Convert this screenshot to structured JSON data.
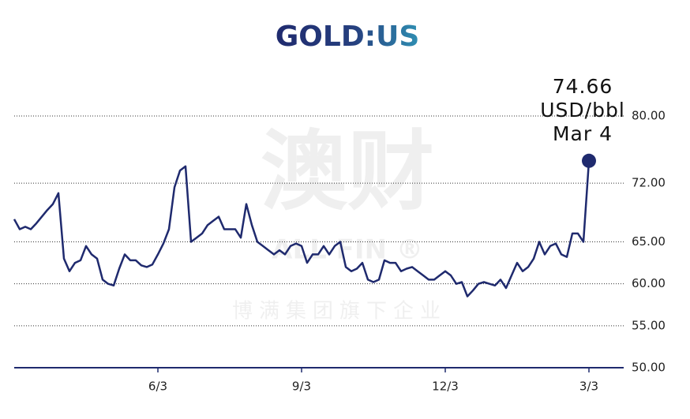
{
  "chart_data": {
    "type": "line",
    "title": "GOLD:US",
    "categories": [
      null,
      null,
      null,
      null,
      null,
      null,
      null,
      null,
      null,
      null,
      null,
      null,
      null,
      null,
      null,
      null,
      null,
      null,
      null,
      null,
      null,
      null,
      null,
      null,
      null,
      null,
      "6/3",
      null,
      null,
      null,
      null,
      null,
      null,
      null,
      null,
      null,
      null,
      null,
      null,
      null,
      null,
      null,
      null,
      null,
      null,
      null,
      null,
      null,
      null,
      null,
      null,
      null,
      "9/3",
      null,
      null,
      null,
      null,
      null,
      null,
      null,
      null,
      null,
      null,
      null,
      null,
      null,
      null,
      null,
      null,
      null,
      null,
      null,
      null,
      null,
      null,
      null,
      null,
      null,
      "12/3",
      null,
      null,
      null,
      null,
      null,
      null,
      null,
      null,
      null,
      null,
      null,
      null,
      null,
      null,
      null,
      null,
      null,
      null,
      null,
      null,
      null,
      null,
      null,
      null,
      null,
      "3/3"
    ],
    "series": [
      {
        "color": "#1f2a6e",
        "values": [
          67.7,
          66.5,
          66.8,
          66.5,
          67.2,
          68,
          68.8,
          69.5,
          70.8,
          63,
          61.5,
          62.5,
          62.8,
          64.5,
          63.5,
          63,
          60.5,
          60,
          59.8,
          61.8,
          63.5,
          62.8,
          62.8,
          62.2,
          62,
          62.3,
          63.5,
          64.8,
          66.5,
          71.5,
          73.5,
          74,
          65,
          65.5,
          66,
          67,
          67.5,
          68,
          66.5,
          66.5,
          66.5,
          65.5,
          69.5,
          67,
          65,
          64.5,
          64,
          63.5,
          64,
          63.5,
          64.5,
          64.8,
          64.5,
          62.5,
          63.5,
          63.5,
          64.5,
          63.5,
          64.5,
          65,
          62,
          61.5,
          61.8,
          62.5,
          60.5,
          60.2,
          60.5,
          62.8,
          62.5,
          62.5,
          61.5,
          61.8,
          62,
          61.5,
          61,
          60.5,
          60.5,
          61,
          61.5,
          61,
          60,
          60.2,
          58.5,
          59.2,
          60,
          60.2,
          60,
          59.8,
          60.5,
          59.5,
          61,
          62.5,
          61.5,
          62,
          63,
          65,
          63.5,
          64.5,
          64.8,
          63.5,
          63.2,
          66,
          66,
          65,
          74.66
        ]
      }
    ],
    "ylim": [
      50,
      80
    ],
    "yticks": [
      {
        "value": 50,
        "label": "50.00"
      },
      {
        "value": 55,
        "label": "55.00"
      },
      {
        "value": 60,
        "label": "60.00"
      },
      {
        "value": 65,
        "label": "65.00"
      },
      {
        "value": 72,
        "label": "72.00"
      },
      {
        "value": 80,
        "label": "80.00"
      }
    ],
    "grid": true,
    "annotation": {
      "unit": "USD/bbl",
      "date": "Mar 4"
    },
    "watermark": [
      "澳财",
      "ALL FIN ®",
      "博满集团旗下企业"
    ]
  }
}
